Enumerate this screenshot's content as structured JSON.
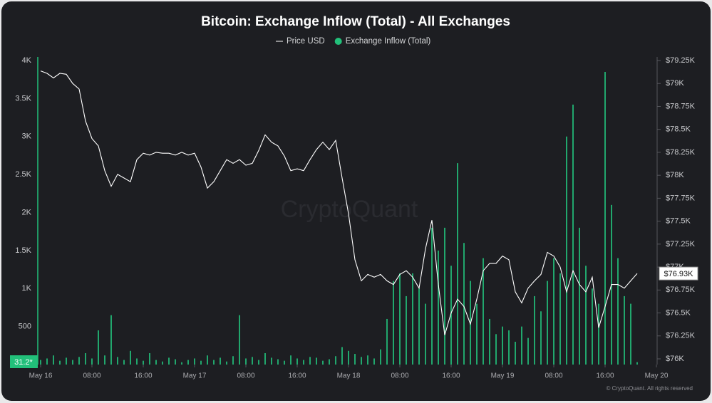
{
  "chart_data": {
    "type": "combo",
    "title": "Bitcoin: Exchange Inflow (Total) - All Exchanges",
    "watermark": "CryptoQuant",
    "footer": "© CryptoQuant. All rights reserved",
    "grid": false,
    "legend": "top",
    "x": [
      0,
      1,
      2,
      3,
      4,
      5,
      6,
      7,
      8,
      9,
      10,
      11,
      12,
      13,
      14,
      15,
      16,
      17,
      18,
      19,
      20,
      21,
      22,
      23,
      24,
      25,
      26,
      27,
      28,
      29,
      30,
      31,
      32,
      33,
      34,
      35,
      36,
      37,
      38,
      39,
      40,
      41,
      42,
      43,
      44,
      45,
      46,
      47,
      48,
      49,
      50,
      51,
      52,
      53,
      54,
      55,
      56,
      57,
      58,
      59,
      60,
      61,
      62,
      63,
      64,
      65,
      66,
      67,
      68,
      69,
      70,
      71,
      72,
      73,
      74,
      75,
      76,
      77,
      78,
      79,
      80,
      81,
      82,
      83,
      84,
      85,
      86,
      87,
      88,
      89,
      90,
      91,
      92,
      93
    ],
    "xlim": [
      0,
      96
    ],
    "xticks": [
      {
        "value": 0,
        "label": "May 16"
      },
      {
        "value": 8,
        "label": "08:00"
      },
      {
        "value": 16,
        "label": "16:00"
      },
      {
        "value": 24,
        "label": "May 17"
      },
      {
        "value": 32,
        "label": "08:00"
      },
      {
        "value": 40,
        "label": "16:00"
      },
      {
        "value": 48,
        "label": "May 18"
      },
      {
        "value": 56,
        "label": "08:00"
      },
      {
        "value": 64,
        "label": "16:00"
      },
      {
        "value": 72,
        "label": "May 19"
      },
      {
        "value": 80,
        "label": "08:00"
      },
      {
        "value": 88,
        "label": "16:00"
      },
      {
        "value": 96,
        "label": "May 20"
      }
    ],
    "ylim": [
      0,
      4000
    ],
    "yticks": [
      500,
      {
        "value": 1000,
        "label": "1K"
      },
      {
        "value": 1500,
        "label": "1.5K"
      },
      {
        "value": 2000,
        "label": "2K"
      },
      {
        "value": 2500,
        "label": "2.5K"
      },
      {
        "value": 3000,
        "label": "3K"
      },
      {
        "value": 3500,
        "label": "3.5K"
      },
      {
        "value": 4000,
        "label": "4K"
      }
    ],
    "y2lim": [
      76000,
      79250
    ],
    "y2ticks": [
      {
        "value": 76000,
        "label": "$76K"
      },
      {
        "value": 76250,
        "label": "$76.25K"
      },
      {
        "value": 76500,
        "label": "$76.5K"
      },
      {
        "value": 76750,
        "label": "$76.75K"
      },
      {
        "value": 77000,
        "label": "$77K"
      },
      {
        "value": 77250,
        "label": "$77.25K"
      },
      {
        "value": 77500,
        "label": "$77.5K"
      },
      {
        "value": 77750,
        "label": "$77.75K"
      },
      {
        "value": 78000,
        "label": "$78K"
      },
      {
        "value": 78250,
        "label": "$78.25K"
      },
      {
        "value": 78500,
        "label": "$78.5K"
      },
      {
        "value": 78750,
        "label": "$78.75K"
      },
      {
        "value": 79000,
        "label": "$79K"
      },
      {
        "value": 79250,
        "label": "$79.25K"
      }
    ],
    "series": [
      {
        "name": "Price USD",
        "type": "line",
        "axis": "y2",
        "color": "#ffffff",
        "current_label": "$76.93K",
        "values": [
          79137,
          79110,
          79060,
          79110,
          79100,
          79000,
          78940,
          78590,
          78400,
          78320,
          78050,
          77880,
          78010,
          77970,
          77930,
          78170,
          78240,
          78220,
          78250,
          78240,
          78240,
          78220,
          78250,
          78220,
          78240,
          78090,
          77860,
          77930,
          78050,
          78170,
          78130,
          78170,
          78110,
          78130,
          78270,
          78440,
          78360,
          78320,
          78210,
          78050,
          78070,
          78050,
          78170,
          78280,
          78360,
          78280,
          78380,
          77970,
          77580,
          77080,
          76850,
          76920,
          76890,
          76920,
          76850,
          76810,
          76920,
          76960,
          76890,
          76770,
          77200,
          77510,
          76810,
          76260,
          76500,
          76650,
          76570,
          76380,
          76650,
          76960,
          77040,
          77040,
          77120,
          77080,
          76730,
          76610,
          76770,
          76850,
          76920,
          77160,
          77120,
          77000,
          76730,
          76960,
          76810,
          76730,
          76890,
          76340,
          76570,
          76810,
          76810,
          76770,
          76850,
          76930
        ]
      },
      {
        "name": "Exchange Inflow (Total)",
        "type": "bar",
        "color": "#22c07a",
        "current_label": "31.2*",
        "values": [
          60,
          80,
          120,
          50,
          90,
          60,
          100,
          150,
          80,
          450,
          120,
          650,
          100,
          60,
          180,
          80,
          50,
          150,
          60,
          40,
          90,
          70,
          30,
          60,
          80,
          50,
          120,
          60,
          90,
          40,
          110,
          650,
          80,
          100,
          60,
          150,
          90,
          70,
          50,
          120,
          80,
          60,
          100,
          90,
          50,
          70,
          110,
          230,
          180,
          140,
          100,
          120,
          80,
          200,
          600,
          1100,
          1200,
          900,
          1200,
          1000,
          800,
          1800,
          1500,
          1800,
          1300,
          2650,
          1600,
          1100,
          800,
          1400,
          600,
          400,
          500,
          450,
          300,
          500,
          350,
          900,
          700,
          1100,
          1400,
          1200,
          3000,
          3420,
          1800,
          1300,
          1000,
          800,
          3850,
          2100,
          1400,
          900,
          800,
          31.2
        ]
      }
    ]
  }
}
